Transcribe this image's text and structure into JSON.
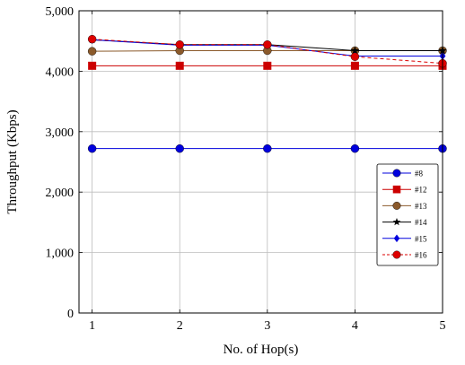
{
  "chart_data": {
    "type": "line",
    "xlabel": "No. of Hop(s)",
    "ylabel": "Throughput (Kbps)",
    "x": [
      1,
      2,
      3,
      4,
      5
    ],
    "xlim": [
      0.85,
      5.0
    ],
    "ylim": [
      0,
      5000
    ],
    "x_ticks": [
      "1",
      "2",
      "3",
      "4",
      "5"
    ],
    "y_ticks": [
      {
        "value": 0,
        "label": "0"
      },
      {
        "value": 1000,
        "label": "1,000"
      },
      {
        "value": 2000,
        "label": "2,000"
      },
      {
        "value": 3000,
        "label": "3,000"
      },
      {
        "value": 4000,
        "label": "4,000"
      },
      {
        "value": 5000,
        "label": "5,000"
      }
    ],
    "grid": true,
    "legend_position": "right",
    "series": [
      {
        "name": "#8",
        "values": [
          2720,
          2720,
          2720,
          2720,
          2720
        ],
        "color": "#0000dd",
        "marker": "circle",
        "dash": false
      },
      {
        "name": "#12",
        "values": [
          4090,
          4090,
          4090,
          4090,
          4090
        ],
        "color": "#cc0000",
        "marker": "square",
        "dash": false
      },
      {
        "name": "#13",
        "values": [
          4330,
          4340,
          4340,
          4340,
          4340
        ],
        "color": "#8b5a2b",
        "marker": "circle",
        "dash": false
      },
      {
        "name": "#14",
        "values": [
          4520,
          4440,
          4440,
          4340,
          4340
        ],
        "color": "#000000",
        "marker": "star",
        "dash": false
      },
      {
        "name": "#15",
        "values": [
          4520,
          4430,
          4430,
          4250,
          4250
        ],
        "color": "#0000dd",
        "marker": "diamond",
        "dash": false
      },
      {
        "name": "#16",
        "values": [
          4530,
          4440,
          4440,
          4240,
          4130
        ],
        "color": "#dd0000",
        "marker": "circle",
        "dash": true
      }
    ]
  }
}
